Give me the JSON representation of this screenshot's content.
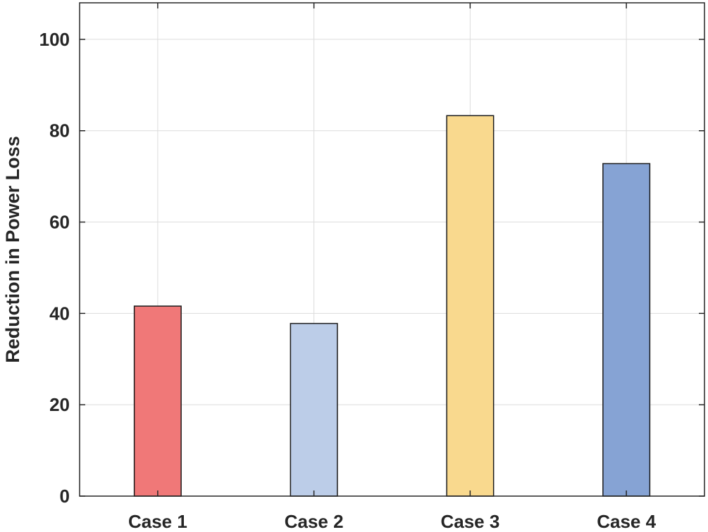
{
  "chart_data": {
    "type": "bar",
    "title": "",
    "xlabel": "",
    "ylabel": "Reduction in Power Loss",
    "categories": [
      "Case 1",
      "Case 2",
      "Case 3",
      "Case 4"
    ],
    "values": [
      41.6,
      37.8,
      83.3,
      72.8
    ],
    "colors": [
      "#f07878",
      "#bccde8",
      "#f9d98e",
      "#86a3d4"
    ],
    "ylim": [
      0,
      108
    ],
    "yticks": [
      0,
      20,
      40,
      60,
      80,
      100
    ],
    "grid": true,
    "legend": "none"
  }
}
